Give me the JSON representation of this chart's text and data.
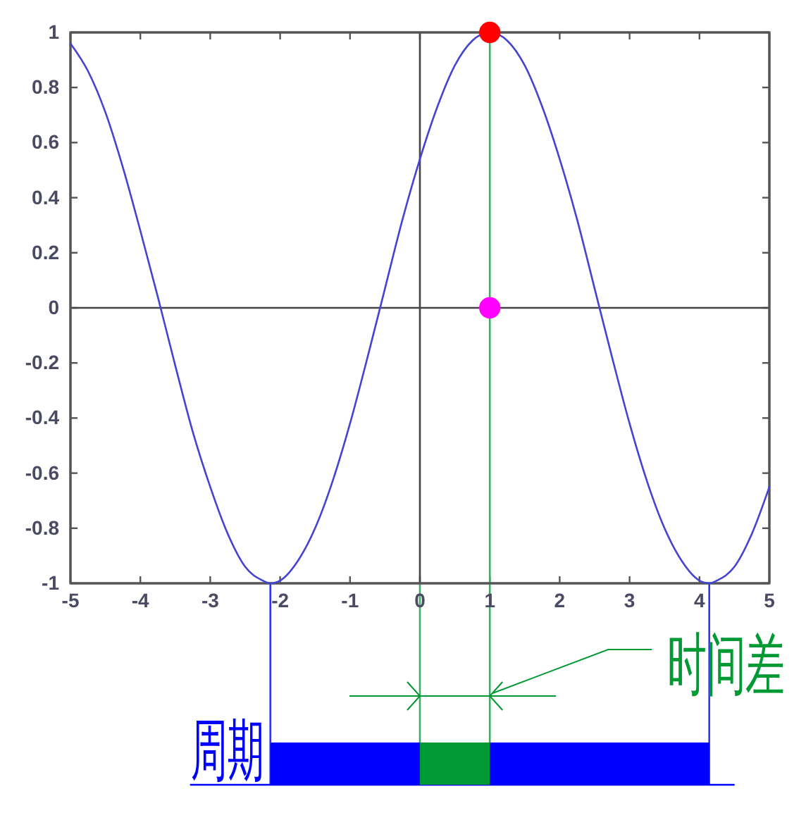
{
  "chart_data": [
    {
      "type": "line",
      "xlim": [
        -5,
        5
      ],
      "xticks": [
        -5,
        -4,
        -3,
        -2,
        -1,
        0,
        1,
        2,
        3,
        4,
        5
      ],
      "ylim": [
        -1,
        1
      ],
      "yticks": [
        -1,
        -0.8,
        -0.6,
        -0.4,
        -0.2,
        0,
        0.2,
        0.4,
        0.6,
        0.8,
        1
      ],
      "series": [
        {
          "type": "line",
          "color": "#4444d4",
          "x": [
            -5,
            -4.75,
            -4.5,
            -4.25,
            -4,
            -3.75,
            -3.5,
            -3.25,
            -3,
            -2.75,
            -2.5,
            -2.25,
            -2.14,
            -2,
            -1.75,
            -1.5,
            -1.25,
            -1,
            -0.75,
            -0.5,
            -0.25,
            0,
            0.25,
            0.5,
            0.75,
            1,
            1.25,
            1.5,
            1.75,
            2,
            2.25,
            2.5,
            2.75,
            3,
            3.25,
            3.5,
            3.75,
            4,
            4.14,
            4.25,
            4.5,
            4.75,
            5
          ],
          "values": [
            0.96,
            0.86,
            0.71,
            0.51,
            0.28,
            0.04,
            -0.21,
            -0.45,
            -0.65,
            -0.82,
            -0.94,
            -0.99,
            -1,
            -0.99,
            -0.92,
            -0.8,
            -0.63,
            -0.42,
            -0.18,
            0.07,
            0.32,
            0.54,
            0.73,
            0.88,
            0.97,
            1,
            0.97,
            0.88,
            0.73,
            0.54,
            0.32,
            0.07,
            -0.18,
            -0.42,
            -0.63,
            -0.8,
            -0.92,
            -0.99,
            -1,
            -0.99,
            -0.94,
            -0.82,
            -0.65
          ]
        },
        {
          "type": "scatter",
          "marker": "circle",
          "x": [
            1,
            1
          ],
          "values": [
            1,
            0
          ],
          "colors": [
            "#ff0000",
            "#ff00ff"
          ]
        }
      ],
      "ref_lines": [
        {
          "axis": "x",
          "value": 0,
          "color": "#444444"
        },
        {
          "axis": "y",
          "value": 0,
          "color": "#444444"
        },
        {
          "axis": "x",
          "value": 1,
          "color": "#44aa66"
        }
      ]
    },
    {
      "type": "bar",
      "orientation": "horizontal",
      "categories": [
        null
      ],
      "xlim": [
        -5,
        5
      ],
      "tick_labels": false,
      "series": [
        {
          "name": "周期",
          "color": "#0000ff",
          "values": [
            6.28
          ],
          "base": [
            -2.14
          ]
        },
        {
          "name": "时间差",
          "color": "#009933",
          "values": [
            1
          ],
          "base": [
            0
          ]
        }
      ],
      "ref_lines": [
        {
          "axis": "x",
          "value": -2.14,
          "color": "#3333ff"
        },
        {
          "axis": "x",
          "value": 4.14,
          "color": "#3333ff"
        },
        {
          "axis": "x",
          "value": 0,
          "color": "#44aa66"
        },
        {
          "axis": "x",
          "value": 1,
          "color": "#44aa66"
        }
      ]
    }
  ]
}
